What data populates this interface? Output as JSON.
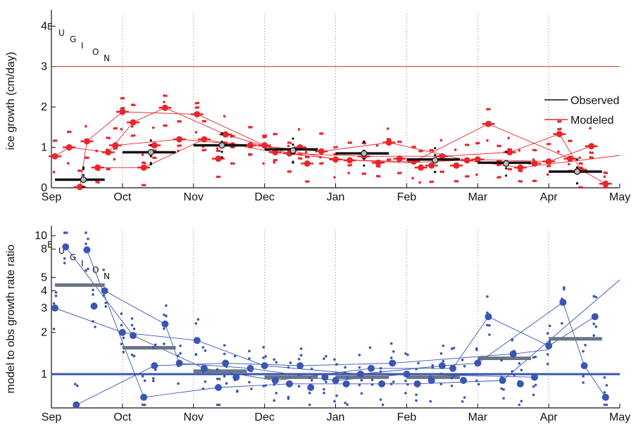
{
  "colors": {
    "observed": "#111111",
    "modeled": "#e8262a",
    "ratio": "#3a55b4",
    "ratio_bar": "#6b7585",
    "month_divider": "#888888"
  },
  "chart_data": [
    {
      "type": "scatter",
      "ylabel": "ice growth (cm/day)",
      "ylim": [
        0,
        4.3
      ],
      "yticks": [
        0,
        1,
        2,
        3,
        4
      ],
      "xticks": [
        "Sep",
        "Oct",
        "Nov",
        "Dec",
        "Jan",
        "Feb",
        "Mar",
        "Apr",
        "May"
      ],
      "reference_line": {
        "y": 3
      },
      "inset_letters": [
        "E",
        "U",
        "G",
        "I",
        "O",
        "N"
      ],
      "legend": {
        "placement": "right",
        "entries": [
          "Observed",
          "Modeled"
        ]
      },
      "observed_bins": [
        {
          "x0": 0.05,
          "x1": 0.75,
          "y": 0.2
        },
        {
          "x0": 1.0,
          "x1": 1.75,
          "y": 0.88
        },
        {
          "x0": 2.0,
          "x1": 2.75,
          "y": 1.05
        },
        {
          "x0": 3.0,
          "x1": 3.75,
          "y": 0.95
        },
        {
          "x0": 4.0,
          "x1": 4.75,
          "y": 0.85
        },
        {
          "x0": 5.0,
          "x1": 5.75,
          "y": 0.7
        },
        {
          "x0": 6.0,
          "x1": 6.75,
          "y": 0.62
        },
        {
          "x0": 7.0,
          "x1": 7.75,
          "y": 0.4
        }
      ],
      "observed_means": [
        [
          0.45,
          0.2
        ],
        [
          1.4,
          0.88
        ],
        [
          2.4,
          1.05
        ],
        [
          3.4,
          0.92
        ],
        [
          4.4,
          0.85
        ],
        [
          5.4,
          0.68
        ],
        [
          6.4,
          0.6
        ],
        [
          7.4,
          0.4
        ]
      ],
      "modeled_points": [
        [
          0.05,
          0.78
        ],
        [
          0.25,
          1.0
        ],
        [
          0.4,
          0.02
        ],
        [
          0.5,
          1.15
        ],
        [
          0.65,
          0.5
        ],
        [
          0.8,
          0.88
        ],
        [
          0.9,
          1.05
        ],
        [
          1.0,
          1.88
        ],
        [
          1.15,
          1.62
        ],
        [
          1.3,
          0.5
        ],
        [
          1.45,
          1.05
        ],
        [
          1.6,
          1.98
        ],
        [
          1.8,
          1.2
        ],
        [
          2.05,
          1.82
        ],
        [
          2.15,
          1.2
        ],
        [
          2.35,
          0.72
        ],
        [
          2.45,
          1.32
        ],
        [
          2.55,
          1.05
        ],
        [
          2.8,
          1.05
        ],
        [
          3.0,
          1.05
        ],
        [
          3.15,
          0.88
        ],
        [
          3.35,
          0.85
        ],
        [
          3.5,
          1.0
        ],
        [
          3.6,
          0.6
        ],
        [
          3.8,
          0.9
        ],
        [
          4.0,
          0.7
        ],
        [
          4.2,
          0.68
        ],
        [
          4.4,
          0.78
        ],
        [
          4.6,
          0.62
        ],
        [
          4.75,
          1.12
        ],
        [
          4.9,
          0.72
        ],
        [
          5.1,
          0.65
        ],
        [
          5.2,
          0.5
        ],
        [
          5.35,
          0.55
        ],
        [
          5.5,
          0.78
        ],
        [
          5.7,
          0.55
        ],
        [
          5.85,
          0.68
        ],
        [
          6.0,
          0.7
        ],
        [
          6.15,
          1.58
        ],
        [
          6.3,
          0.62
        ],
        [
          6.45,
          0.88
        ],
        [
          6.6,
          0.5
        ],
        [
          6.8,
          0.6
        ],
        [
          7.0,
          0.65
        ],
        [
          7.15,
          1.33
        ],
        [
          7.3,
          0.72
        ],
        [
          7.45,
          0.45
        ],
        [
          7.6,
          1.03
        ],
        [
          7.8,
          0.1
        ]
      ],
      "modeled_tracks": [
        [
          [
            0.05,
            0.78
          ],
          [
            0.25,
            1.0
          ],
          [
            0.8,
            0.88
          ],
          [
            1.15,
            1.62
          ],
          [
            1.6,
            1.98
          ],
          [
            2.45,
            1.32
          ],
          [
            3.35,
            0.85
          ],
          [
            4.4,
            0.78
          ],
          [
            5.5,
            0.78
          ],
          [
            6.45,
            0.88
          ],
          [
            7.15,
            1.33
          ],
          [
            7.45,
            0.45
          ],
          [
            7.8,
            0.1
          ]
        ],
        [
          [
            0.4,
            0.02
          ],
          [
            0.5,
            1.15
          ],
          [
            1.0,
            1.88
          ],
          [
            2.05,
            1.82
          ],
          [
            3.0,
            1.05
          ],
          [
            4.0,
            0.7
          ],
          [
            5.0,
            0.62
          ],
          [
            6.0,
            0.7
          ],
          [
            7.0,
            0.65
          ],
          [
            7.6,
            1.03
          ]
        ],
        [
          [
            0.65,
            0.5
          ],
          [
            1.3,
            0.5
          ],
          [
            2.15,
            1.2
          ],
          [
            3.15,
            0.88
          ],
          [
            4.2,
            0.68
          ],
          [
            5.1,
            0.65
          ],
          [
            6.15,
            1.58
          ],
          [
            7.3,
            0.72
          ]
        ],
        [
          [
            0.9,
            1.05
          ],
          [
            1.8,
            1.2
          ],
          [
            2.8,
            1.05
          ],
          [
            3.8,
            0.9
          ],
          [
            4.75,
            1.12
          ],
          [
            5.85,
            0.68
          ],
          [
            6.6,
            0.5
          ],
          [
            8.0,
            0.8
          ]
        ]
      ]
    },
    {
      "type": "scatter",
      "ylabel": "model to obs growth rate ratio",
      "yscale": "log",
      "ylim": [
        0.57,
        11
      ],
      "yticks": [
        1,
        2,
        3,
        4,
        5,
        8,
        10
      ],
      "xticks": [
        "Sep",
        "Oct",
        "Nov",
        "Dec",
        "Jan",
        "Feb",
        "Mar",
        "Apr",
        "May"
      ],
      "reference_line": {
        "y": 1
      },
      "inset_letters": [
        "E",
        "U",
        "G",
        "I",
        "O",
        "N"
      ],
      "ratio_bins": [
        {
          "x0": 0.05,
          "x1": 0.75,
          "y": 4.4
        },
        {
          "x0": 1.0,
          "x1": 1.75,
          "y": 1.55
        },
        {
          "x0": 2.0,
          "x1": 2.75,
          "y": 1.05
        },
        {
          "x0": 3.0,
          "x1": 3.75,
          "y": 0.95
        },
        {
          "x0": 4.0,
          "x1": 4.75,
          "y": 0.95
        },
        {
          "x0": 5.0,
          "x1": 5.75,
          "y": 0.95
        },
        {
          "x0": 6.0,
          "x1": 6.75,
          "y": 1.3
        },
        {
          "x0": 7.0,
          "x1": 7.75,
          "y": 1.8
        }
      ],
      "ratio_points": [
        [
          0.05,
          3.0
        ],
        [
          0.2,
          8.3
        ],
        [
          0.35,
          0.6
        ],
        [
          0.5,
          7.9
        ],
        [
          0.6,
          3.1
        ],
        [
          0.75,
          4.0
        ],
        [
          1.0,
          2.0
        ],
        [
          1.15,
          1.9
        ],
        [
          1.3,
          0.68
        ],
        [
          1.45,
          1.15
        ],
        [
          1.6,
          2.3
        ],
        [
          1.8,
          1.2
        ],
        [
          2.05,
          1.75
        ],
        [
          2.15,
          1.1
        ],
        [
          2.35,
          0.8
        ],
        [
          2.45,
          1.2
        ],
        [
          2.6,
          0.95
        ],
        [
          2.8,
          1.1
        ],
        [
          3.0,
          1.15
        ],
        [
          3.15,
          0.9
        ],
        [
          3.35,
          0.85
        ],
        [
          3.5,
          1.15
        ],
        [
          3.65,
          0.8
        ],
        [
          3.85,
          0.95
        ],
        [
          4.0,
          0.9
        ],
        [
          4.15,
          0.85
        ],
        [
          4.35,
          1.0
        ],
        [
          4.5,
          1.1
        ],
        [
          4.65,
          0.85
        ],
        [
          4.8,
          1.2
        ],
        [
          5.0,
          1.0
        ],
        [
          5.15,
          0.85
        ],
        [
          5.35,
          0.9
        ],
        [
          5.5,
          1.15
        ],
        [
          5.65,
          1.1
        ],
        [
          5.8,
          0.9
        ],
        [
          6.0,
          1.2
        ],
        [
          6.15,
          2.6
        ],
        [
          6.35,
          0.9
        ],
        [
          6.5,
          1.4
        ],
        [
          6.6,
          0.85
        ],
        [
          6.8,
          0.95
        ],
        [
          7.0,
          1.6
        ],
        [
          7.2,
          3.3
        ],
        [
          7.5,
          1.15
        ],
        [
          7.65,
          2.6
        ],
        [
          7.8,
          0.68
        ]
      ],
      "ratio_tracks": [
        [
          [
            0.05,
            3.0
          ],
          [
            1.0,
            2.0
          ],
          [
            2.05,
            1.75
          ],
          [
            3.0,
            1.15
          ],
          [
            4.35,
            1.0
          ],
          [
            5.5,
            1.15
          ],
          [
            6.0,
            1.2
          ],
          [
            7.2,
            3.3
          ],
          [
            7.5,
            1.15
          ],
          [
            7.8,
            0.68
          ]
        ],
        [
          [
            0.2,
            8.3
          ],
          [
            1.15,
            1.9
          ],
          [
            2.15,
            1.1
          ],
          [
            3.15,
            0.9
          ],
          [
            4.5,
            1.1
          ],
          [
            5.65,
            1.1
          ],
          [
            6.15,
            2.6
          ],
          [
            7.0,
            1.6
          ],
          [
            7.65,
            2.6
          ]
        ],
        [
          [
            0.5,
            7.9
          ],
          [
            1.3,
            0.68
          ],
          [
            2.35,
            0.8
          ],
          [
            3.35,
            0.85
          ],
          [
            4.15,
            0.85
          ],
          [
            5.15,
            0.85
          ],
          [
            6.35,
            0.9
          ],
          [
            8.0,
            4.8
          ]
        ],
        [
          [
            0.35,
            0.6
          ],
          [
            1.45,
            1.15
          ],
          [
            2.45,
            1.2
          ],
          [
            3.5,
            1.15
          ],
          [
            4.8,
            1.2
          ],
          [
            6.5,
            1.4
          ],
          [
            7.0,
            1.5
          ]
        ],
        [
          [
            0.75,
            4.0
          ],
          [
            1.6,
            2.3
          ],
          [
            1.8,
            1.2
          ],
          [
            2.8,
            1.1
          ],
          [
            4.0,
            0.9
          ],
          [
            5.0,
            1.0
          ],
          [
            6.8,
            0.95
          ]
        ]
      ]
    }
  ]
}
